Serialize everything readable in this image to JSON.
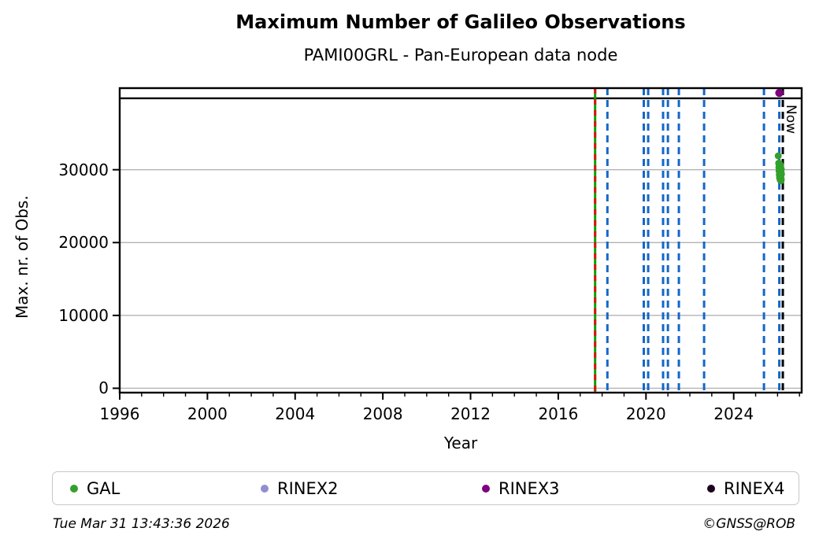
{
  "title": "Maximum Number of Galileo Observations",
  "subtitle": "PAMI00GRL - Pan-European data node",
  "footer": {
    "timestamp": "Tue Mar 31 13:43:36 2026",
    "credit": "©GNSS@ROB"
  },
  "colors": {
    "grid": "#b3b3b3",
    "axis": "#000000",
    "event_blue": "#1467c8",
    "event_green": "#00a000",
    "event_red": "#dd1111",
    "now_line": "#000000"
  },
  "chart_data": {
    "type": "scatter",
    "title": "Maximum Number of Galileo Observations",
    "subtitle": "PAMI00GRL - Pan-European data node",
    "xlabel": "Year",
    "ylabel": "Max. nr. of Obs.",
    "xlim": [
      1996,
      2027.1
    ],
    "ylim": [
      -600,
      41200
    ],
    "x_major_ticks": [
      1996,
      2000,
      2004,
      2008,
      2012,
      2016,
      2020,
      2024
    ],
    "x_minor_tick_every": 1,
    "y_ticks": [
      0,
      10000,
      20000,
      30000
    ],
    "grid": "horizontal",
    "legend_position": "bottom",
    "reference_line": {
      "value": 39800,
      "color": "#000000",
      "style": "solid"
    },
    "event_lines": {
      "blue_dashed_years": [
        2018.24,
        2019.9,
        2020.1,
        2020.78,
        2021.0,
        2021.5,
        2022.65,
        2025.38,
        2026.08
      ],
      "green_red_dashed_year": 2017.68,
      "now": {
        "year": 2026.24,
        "label": "Now",
        "style": "dashed",
        "color": "#000000"
      }
    },
    "series": [
      {
        "name": "GAL",
        "color": "#33a02c",
        "marker": "dot",
        "points": [
          [
            2026.03,
            31900
          ],
          [
            2026.05,
            30900
          ],
          [
            2026.06,
            30300
          ],
          [
            2026.07,
            29800
          ],
          [
            2026.08,
            30600
          ],
          [
            2026.08,
            29300
          ],
          [
            2026.09,
            30100
          ],
          [
            2026.09,
            28900
          ],
          [
            2026.1,
            29600
          ],
          [
            2026.1,
            30800
          ],
          [
            2026.11,
            29100
          ],
          [
            2026.11,
            30400
          ],
          [
            2026.12,
            28600
          ],
          [
            2026.12,
            29900
          ],
          [
            2026.13,
            30200
          ],
          [
            2026.13,
            28800
          ],
          [
            2026.14,
            29500
          ],
          [
            2026.14,
            30600
          ],
          [
            2026.15,
            29000
          ],
          [
            2026.15,
            29900
          ],
          [
            2026.16,
            28500
          ],
          [
            2026.16,
            29700
          ],
          [
            2026.17,
            30100
          ],
          [
            2026.17,
            28700
          ],
          [
            2026.18,
            29400
          ]
        ]
      },
      {
        "name": "RINEX2",
        "color": "#8f8fd0",
        "marker": "dot",
        "points": []
      },
      {
        "name": "RINEX3",
        "color": "#800080",
        "marker": "dot",
        "points": [
          [
            2026.08,
            40550
          ]
        ]
      },
      {
        "name": "RINEX4",
        "color": "#1c021c",
        "marker": "dot",
        "points": []
      }
    ]
  }
}
